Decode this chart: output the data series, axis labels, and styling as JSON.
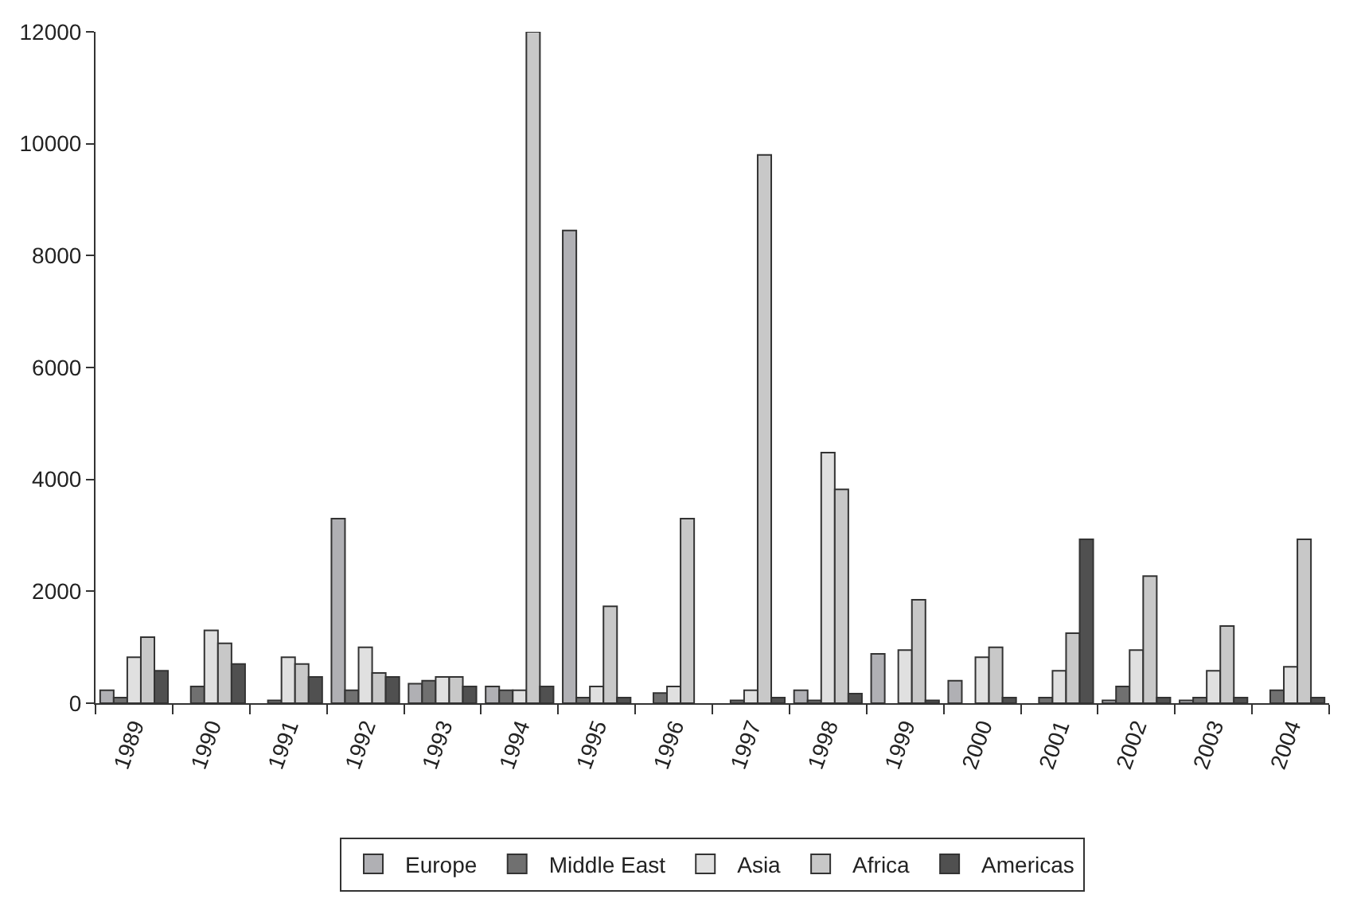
{
  "chart_data": {
    "type": "bar",
    "categories": [
      "1989",
      "1990",
      "1991",
      "1992",
      "1993",
      "1994",
      "1995",
      "1996",
      "1997",
      "1998",
      "1999",
      "2000",
      "2001",
      "2002",
      "2003",
      "2004"
    ],
    "series": [
      {
        "name": "Europe",
        "color": "#b0b0b4",
        "values": [
          230,
          null,
          null,
          3300,
          350,
          300,
          8450,
          null,
          null,
          230,
          880,
          400,
          null,
          50,
          50,
          null
        ]
      },
      {
        "name": "Middle East",
        "color": "#707070",
        "values": [
          100,
          300,
          50,
          230,
          400,
          230,
          100,
          180,
          50,
          50,
          null,
          null,
          100,
          300,
          100,
          230
        ]
      },
      {
        "name": "Asia",
        "color": "#e0e0e0",
        "values": [
          820,
          1300,
          820,
          1000,
          470,
          230,
          300,
          300,
          230,
          4480,
          950,
          820,
          580,
          950,
          580,
          650
        ]
      },
      {
        "name": "Africa",
        "color": "#c8c8c8",
        "values": [
          1180,
          1070,
          700,
          540,
          470,
          12000,
          1730,
          3300,
          9800,
          3820,
          1850,
          1000,
          1250,
          2270,
          1380,
          2930
        ]
      },
      {
        "name": "Americas",
        "color": "#505050",
        "values": [
          580,
          700,
          470,
          470,
          300,
          300,
          100,
          null,
          100,
          170,
          50,
          100,
          2930,
          100,
          100,
          100
        ]
      }
    ],
    "ylim": [
      0,
      12000
    ],
    "yticks": [
      0,
      2000,
      4000,
      6000,
      8000,
      10000,
      12000
    ],
    "legend": "bottom"
  }
}
